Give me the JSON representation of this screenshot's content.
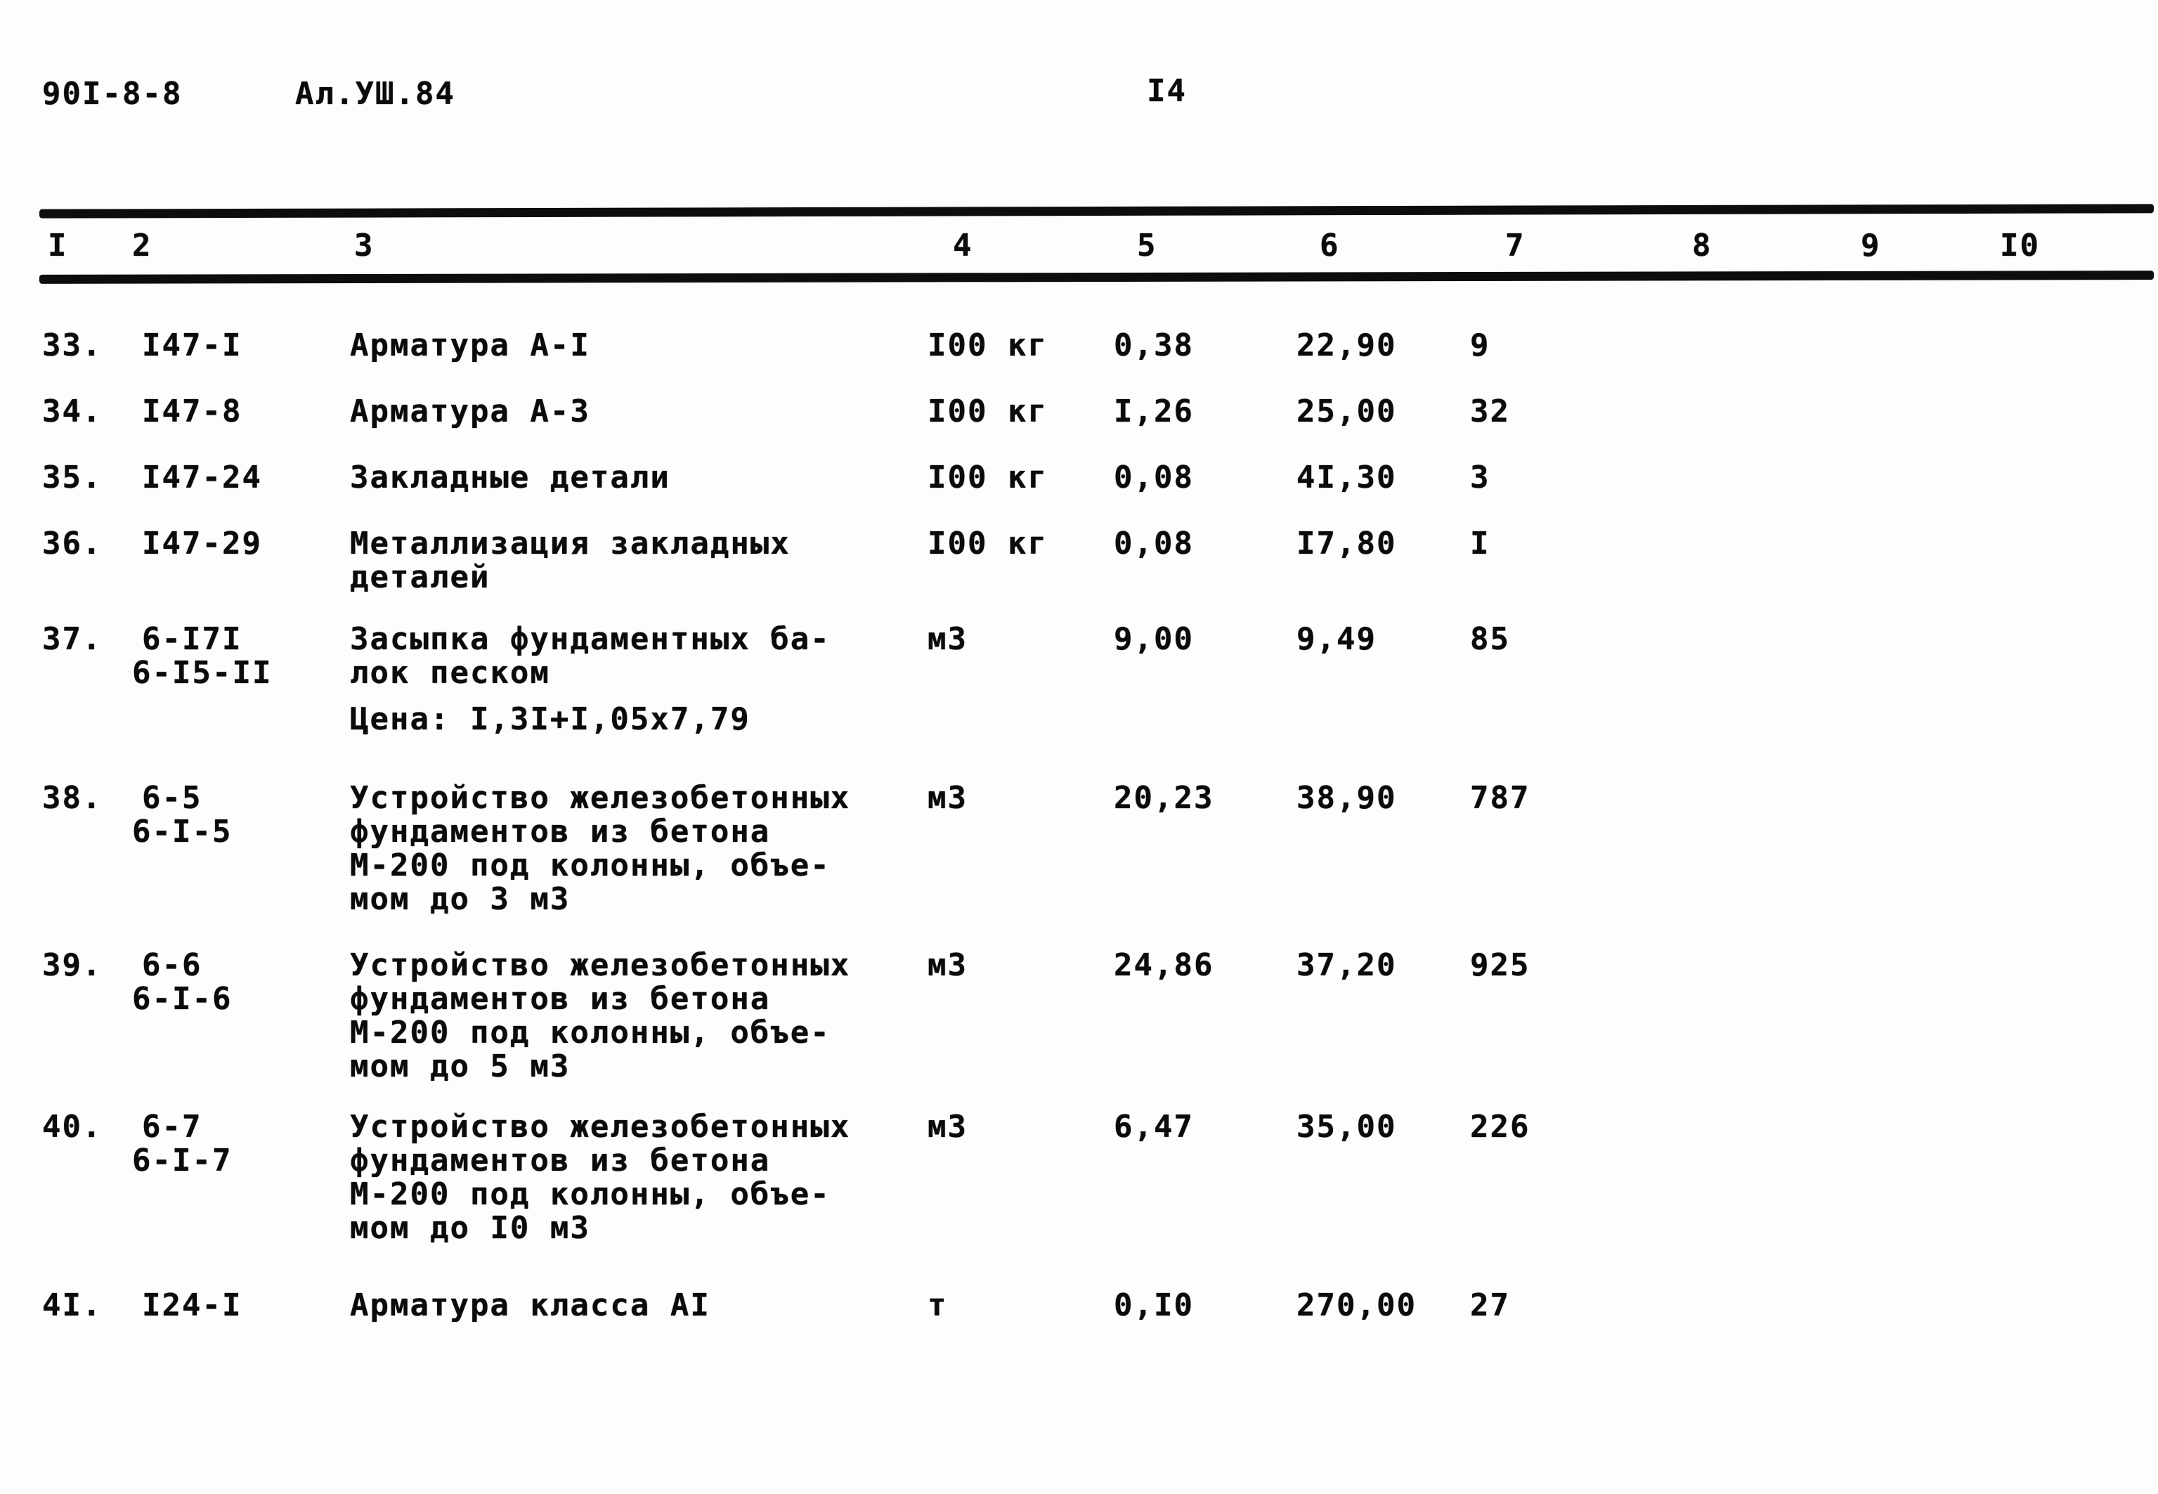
{
  "header": {
    "doc_number": "90I-8-8",
    "album_code": "Ал.УШ.84",
    "page_number": "I4"
  },
  "table": {
    "column_headers": [
      "I",
      "2",
      "3",
      "4",
      "5",
      "6",
      "7",
      "8",
      "9",
      "I0"
    ],
    "rows": [
      {
        "num": "33.",
        "codes": [
          "I47-I"
        ],
        "description": [
          "Арматура А-I"
        ],
        "unit": "I00 кг",
        "qty": "0,38",
        "price": "22,90",
        "total": "9"
      },
      {
        "num": "34.",
        "codes": [
          "I47-8"
        ],
        "description": [
          "Арматура А-3"
        ],
        "unit": "I00 кг",
        "qty": "I,26",
        "price": "25,00",
        "total": "32"
      },
      {
        "num": "35.",
        "codes": [
          "I47-24"
        ],
        "description": [
          "Закладные детали"
        ],
        "unit": "I00 кг",
        "qty": "0,08",
        "price": "4I,30",
        "total": "3"
      },
      {
        "num": "36.",
        "codes": [
          "I47-29"
        ],
        "description": [
          "Металлизация закладных",
          "деталей"
        ],
        "unit": "I00 кг",
        "qty": "0,08",
        "price": "I7,80",
        "total": "I"
      },
      {
        "num": "37.",
        "codes": [
          "6-I7I",
          "6-I5-II"
        ],
        "description": [
          "Засыпка фундаментных ба-",
          "лок песком"
        ],
        "note": "Цена: I,3I+I,05х7,79",
        "unit": "м3",
        "qty": "9,00",
        "price": "9,49",
        "total": "85"
      },
      {
        "num": "38.",
        "codes": [
          "6-5",
          "6-I-5"
        ],
        "description": [
          "Устройство железобетонных",
          "фундаментов из бетона",
          "М-200 под колонны, объе-",
          "мом до 3 м3"
        ],
        "unit": "м3",
        "qty": "20,23",
        "price": "38,90",
        "total": "787"
      },
      {
        "num": "39.",
        "codes": [
          "6-6",
          "6-I-6"
        ],
        "description": [
          "Устройство железобетонных",
          "фундаментов из бетона",
          "М-200 под колонны, объе-",
          "мом до 5 м3"
        ],
        "unit": "м3",
        "qty": "24,86",
        "price": "37,20",
        "total": "925"
      },
      {
        "num": "40.",
        "codes": [
          "6-7",
          "6-I-7"
        ],
        "description": [
          "Устройство железобетонных",
          "фундаментов из бетона",
          "М-200 под колонны, объе-",
          "мом до I0 м3"
        ],
        "unit": "м3",
        "qty": "6,47",
        "price": "35,00",
        "total": "226"
      },
      {
        "num": "4I.",
        "codes": [
          "I24-I"
        ],
        "description": [
          "Арматура класса АI"
        ],
        "unit": "т",
        "qty": "0,I0",
        "price": "270,00",
        "total": "27"
      }
    ]
  }
}
